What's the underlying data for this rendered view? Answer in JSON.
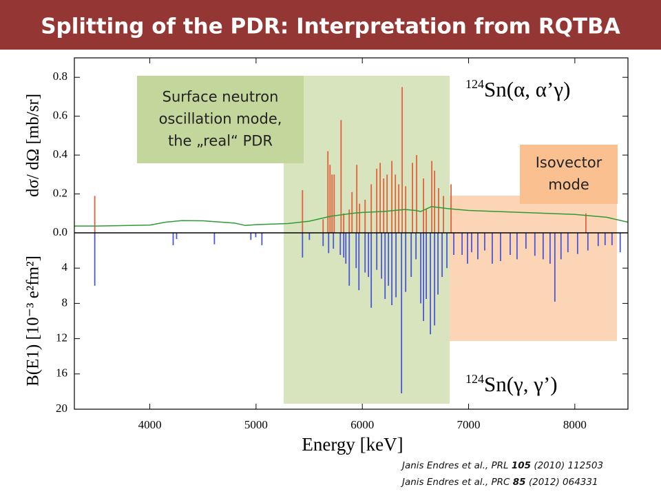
{
  "title": "Splitting of the PDR: Interpretation from RQTBA",
  "boxes": [
    {
      "lines": [
        "Surface neutron",
        "oscillation mode,",
        "the „real“ PDR"
      ]
    },
    {
      "lines": [
        "Isovector",
        "mode"
      ]
    }
  ],
  "citations": [
    {
      "pre": "Janis Endres et al., PRL ",
      "volume": "105",
      "post": " (2010) 112503"
    },
    {
      "pre": "Janis Endres et al., PRC ",
      "volume": "85",
      "post": " (2012) 064331"
    }
  ],
  "chart_data": [
    {
      "type": "stick",
      "ylabel": "dσ/ dΩ  [mb/sr]",
      "annotation": {
        "mass": "124",
        "text": "Sn(α, α’γ)"
      },
      "xlim": [
        3290,
        8500
      ],
      "ylim": [
        0,
        0.9
      ],
      "yticks": [
        {
          "value": 0,
          "label": "0.0"
        },
        0.2,
        0.4,
        0.6,
        0.8
      ],
      "series": [
        {
          "type": "stick",
          "color": "#e2603c",
          "x": [
            3482,
            5437,
            5631,
            5676,
            5696,
            5715,
            5735,
            5800,
            5825,
            5877,
            5903,
            5948,
            5974,
            6026,
            6084,
            6136,
            6168,
            6201,
            6233,
            6278,
            6311,
            6343,
            6375,
            6408,
            6472,
            6511,
            6576,
            6602,
            6654,
            6680,
            6718,
            6764,
            6835,
            8104
          ],
          "values": [
            0.19,
            0.22,
            0.07,
            0.42,
            0.35,
            0.3,
            0.3,
            0.58,
            0.1,
            0.12,
            0.21,
            0.35,
            0.15,
            0.17,
            0.25,
            0.33,
            0.36,
            0.28,
            0.3,
            0.37,
            0.3,
            0.25,
            0.75,
            0.24,
            0.36,
            0.4,
            0.28,
            0.12,
            0.37,
            0.32,
            0.23,
            0.19,
            0.25,
            0.1
          ]
        },
        {
          "type": "line",
          "color": "#2e9a36",
          "x": [
            3290,
            3500,
            4000,
            4150,
            4300,
            4500,
            4800,
            4900,
            5000,
            5300,
            5500,
            5700,
            5900,
            6000,
            6200,
            6400,
            6500,
            6550,
            6650,
            6800,
            7000,
            7500,
            8000,
            8300,
            8500
          ],
          "values": [
            0.035,
            0.035,
            0.04,
            0.055,
            0.063,
            0.062,
            0.05,
            0.038,
            0.042,
            0.048,
            0.06,
            0.085,
            0.1,
            0.105,
            0.11,
            0.12,
            0.115,
            0.11,
            0.135,
            0.125,
            0.115,
            0.105,
            0.095,
            0.08,
            0.055
          ]
        }
      ]
    },
    {
      "type": "stick",
      "ylabel": "B(E1) [10⁻³ e²fm²]",
      "xlabel": "Energy [keV]",
      "annotation": {
        "mass": "124",
        "text": "Sn(γ, γ’)"
      },
      "inverted": true,
      "xlim": [
        3290,
        8500
      ],
      "xticks": [
        4000,
        5000,
        6000,
        7000,
        8000
      ],
      "ylim": [
        0,
        20
      ],
      "yticks": [
        4,
        8,
        12,
        16,
        20
      ],
      "series": [
        {
          "type": "stick",
          "color": "#4a55d8",
          "x": [
            3482,
            4220,
            4252,
            4608,
            4951,
            4997,
            5055,
            5437,
            5502,
            5631,
            5683,
            5728,
            5793,
            5825,
            5845,
            5877,
            5942,
            5968,
            6026,
            6058,
            6084,
            6136,
            6181,
            6214,
            6246,
            6278,
            6317,
            6369,
            6408,
            6460,
            6505,
            6550,
            6576,
            6602,
            6641,
            6680,
            6712,
            6751,
            6796,
            6861,
            6939,
            6990,
            7029,
            7087,
            7152,
            7223,
            7301,
            7392,
            7456,
            7540,
            7624,
            7702,
            7767,
            7812,
            7870,
            7935,
            8026,
            8123,
            8220,
            8285,
            8350,
            8427
          ],
          "values": [
            6.0,
            1.4,
            0.7,
            1.3,
            0.8,
            0.5,
            1.4,
            2.8,
            0.8,
            1.5,
            2.3,
            1.8,
            2.5,
            2.8,
            3.5,
            6.0,
            4.0,
            6.5,
            4.5,
            5.0,
            8.5,
            4.2,
            5.2,
            7.5,
            6.0,
            8.2,
            7.3,
            18.2,
            6.7,
            5.0,
            3.0,
            8.0,
            10.0,
            7.5,
            11.5,
            10.5,
            7.0,
            5.0,
            4.0,
            2.5,
            2.5,
            3.5,
            2.2,
            3.0,
            2.0,
            3.5,
            3.2,
            2.5,
            3.0,
            1.8,
            2.6,
            3.0,
            3.5,
            7.8,
            3.0,
            2.2,
            2.4,
            2.0,
            1.5,
            1.4,
            1.4,
            2.2
          ]
        }
      ]
    }
  ]
}
